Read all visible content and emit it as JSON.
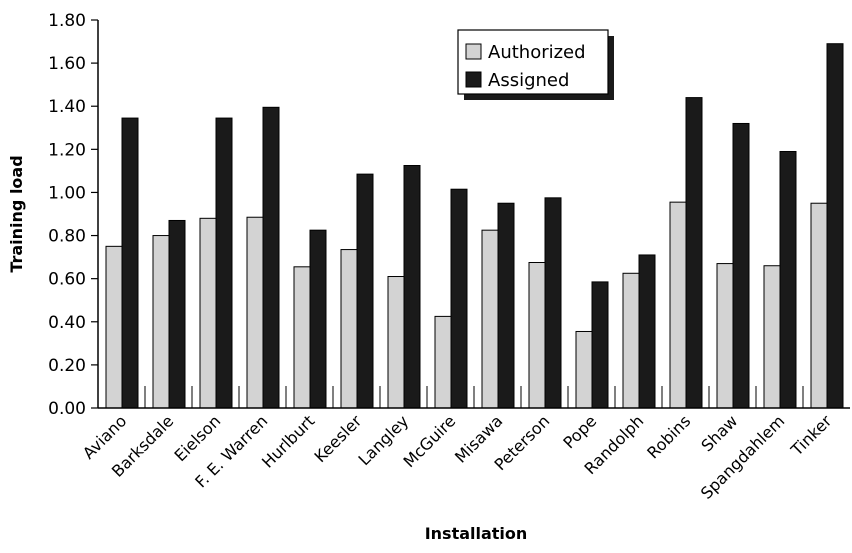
{
  "chart_data": {
    "type": "bar",
    "title": "",
    "xlabel": "Installation",
    "ylabel": "Training load",
    "ylim": [
      0,
      1.8
    ],
    "ytick_step": 0.2,
    "grid": false,
    "legend_position": "top-center",
    "categories": [
      "Aviano",
      "Barksdale",
      "Eielson",
      "F. E. Warren",
      "Hurlburt",
      "Keesler",
      "Langley",
      "McGuire",
      "Misawa",
      "Peterson",
      "Pope",
      "Randolph",
      "Robins",
      "Shaw",
      "Spangdahlem",
      "Tinker"
    ],
    "series": [
      {
        "name": "Authorized",
        "color": "#d3d3d3",
        "values": [
          0.75,
          0.8,
          0.88,
          0.885,
          0.655,
          0.735,
          0.61,
          0.425,
          0.825,
          0.675,
          0.355,
          0.625,
          0.955,
          0.67,
          0.66,
          0.95
        ]
      },
      {
        "name": "Assigned",
        "color": "#1a1a1a",
        "values": [
          1.345,
          0.87,
          1.345,
          1.395,
          0.825,
          1.085,
          1.125,
          1.015,
          0.95,
          0.975,
          0.585,
          0.71,
          1.44,
          1.32,
          1.19,
          1.69
        ]
      }
    ]
  }
}
